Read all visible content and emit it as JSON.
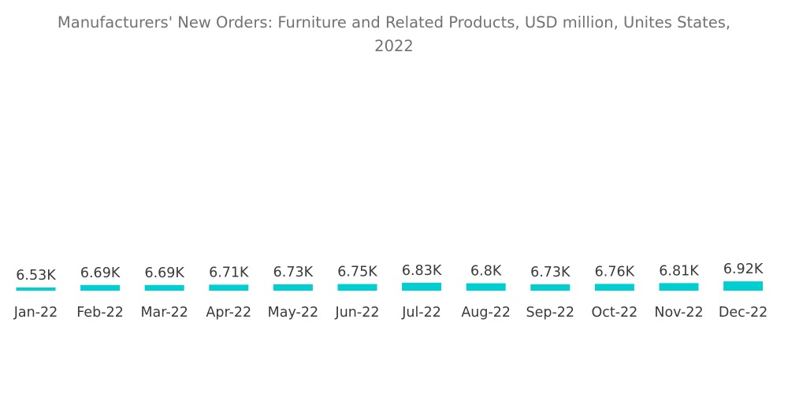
{
  "chart_data": {
    "type": "bar",
    "title_lines": [
      "Manufacturers' New Orders: Furniture and Related Products, USD million, Unites States,",
      "2022"
    ],
    "categories": [
      "Jan-22",
      "Feb-22",
      "Mar-22",
      "Apr-22",
      "May-22",
      "Jun-22",
      "Jul-22",
      "Aug-22",
      "Sep-22",
      "Oct-22",
      "Nov-22",
      "Dec-22"
    ],
    "values": [
      6530,
      6690,
      6690,
      6710,
      6730,
      6750,
      6830,
      6800,
      6730,
      6760,
      6810,
      6920
    ],
    "data_labels": [
      "6.53K",
      "6.69K",
      "6.69K",
      "6.71K",
      "6.73K",
      "6.75K",
      "6.83K",
      "6.8K",
      "6.73K",
      "6.76K",
      "6.81K",
      "6.92K"
    ],
    "bar_color": "#00CED1",
    "grid": false,
    "legend": "none"
  }
}
